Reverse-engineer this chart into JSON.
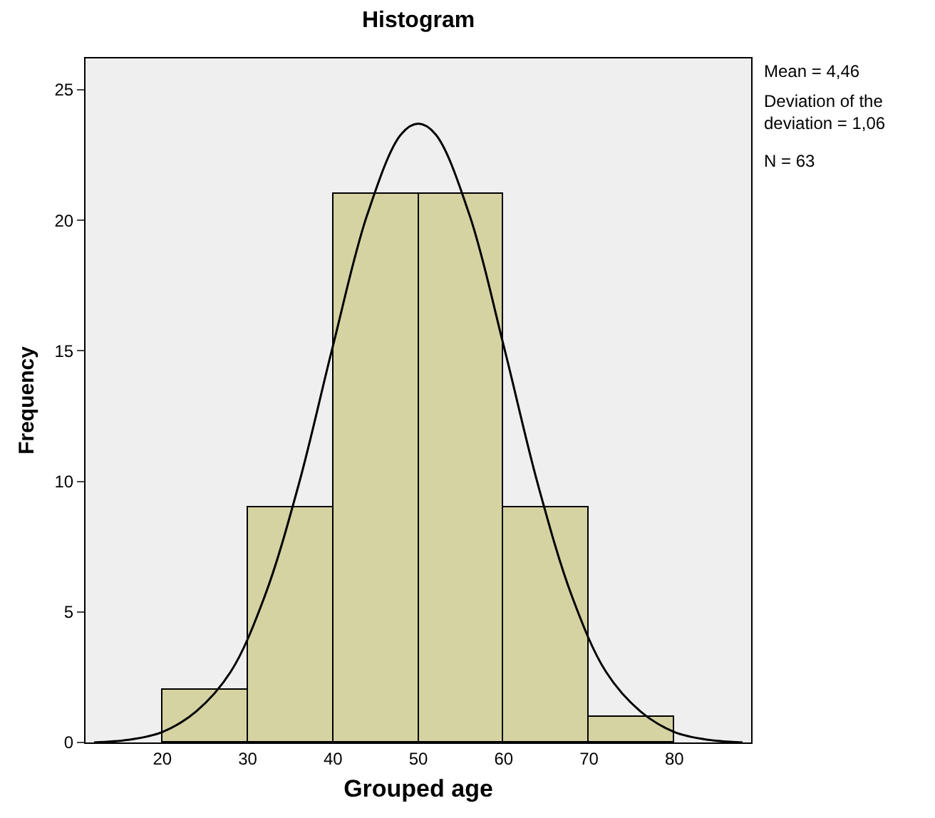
{
  "chart_data": {
    "type": "histogram",
    "title": "Histogram",
    "xlabel": "Grouped age",
    "ylabel": "Frequency",
    "bins": [
      20,
      30,
      40,
      50,
      60,
      70,
      80
    ],
    "values": [
      2,
      9,
      21,
      21,
      9,
      1
    ],
    "color": "#d6d3a3",
    "series": [
      {
        "type": "line",
        "color": "#000000",
        "x": [
          12,
          16,
          20,
          24,
          28,
          32,
          36,
          40,
          44,
          48,
          50,
          52,
          56,
          60,
          64,
          68,
          72,
          76,
          80,
          84,
          88
        ],
        "values": [
          0.0,
          0.1,
          0.4,
          1.2,
          2.7,
          5.6,
          9.9,
          15.2,
          20.2,
          23.3,
          23.7,
          23.3,
          20.2,
          15.2,
          9.9,
          5.6,
          2.7,
          1.2,
          0.4,
          0.1,
          0.0
        ]
      }
    ],
    "xlim": [
      11,
      89
    ],
    "xticks": [
      20,
      30,
      40,
      50,
      60,
      70,
      80
    ],
    "ylim": [
      0,
      26.2
    ],
    "yticks": [
      0,
      5,
      10,
      15,
      20,
      25
    ],
    "grid": false,
    "marker": "none",
    "line_style": "solid",
    "annotations": [
      "Mean = 4,46",
      "Deviation of the deviation = 1,06",
      "N = 63"
    ]
  }
}
